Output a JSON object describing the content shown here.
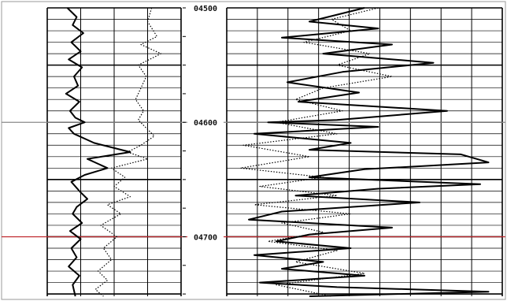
{
  "chart_data": {
    "type": "line",
    "title": "",
    "xlabel": "",
    "ylabel": "",
    "depth_axis": {
      "range": [
        4500,
        4752
      ],
      "inverted": true,
      "labels": [
        {
          "depth": 4500,
          "text": "04500"
        },
        {
          "depth": 4600,
          "text": "04600"
        },
        {
          "depth": 4700,
          "text": "04700"
        }
      ],
      "major_step": 50,
      "minor_step": 10
    },
    "tracks": [
      {
        "name": "track-1",
        "grid_columns": 4
      },
      {
        "name": "track-2",
        "grid_columns": 9
      }
    ],
    "reference_lines": [
      {
        "depth": 4600,
        "color": "#8a8a8a"
      },
      {
        "depth": 4700,
        "color": "#c0282d"
      }
    ],
    "series": [
      {
        "track": 0,
        "style": "solid",
        "color": "#000000",
        "x": [
          0.15,
          0.22,
          0.19,
          0.27,
          0.18,
          0.25,
          0.16,
          0.26,
          0.2,
          0.23,
          0.14,
          0.24,
          0.17,
          0.21,
          0.28,
          0.16,
          0.2,
          0.35,
          0.62,
          0.3,
          0.45,
          0.28,
          0.18,
          0.24,
          0.3,
          0.22,
          0.19,
          0.26,
          0.17,
          0.25,
          0.18,
          0.22,
          0.16,
          0.24,
          0.19,
          0.21
        ],
        "depth": [
          4500,
          4508,
          4515,
          4522,
          4530,
          4538,
          4545,
          4552,
          4560,
          4568,
          4575,
          4582,
          4590,
          4596,
          4600,
          4605,
          4610,
          4618,
          4626,
          4632,
          4640,
          4646,
          4652,
          4660,
          4667,
          4674,
          4680,
          4688,
          4695,
          4702,
          4710,
          4718,
          4726,
          4734,
          4742,
          4752
        ]
      },
      {
        "track": 0,
        "style": "dotted",
        "color": "#000000",
        "x": [
          0.78,
          0.75,
          0.82,
          0.7,
          0.85,
          0.68,
          0.74,
          0.7,
          0.66,
          0.72,
          0.68,
          0.74,
          0.8,
          0.7,
          0.6,
          0.75,
          0.48,
          0.58,
          0.5,
          0.62,
          0.45,
          0.55,
          0.4,
          0.52,
          0.42,
          0.48,
          0.38,
          0.45,
          0.36,
          0.42
        ],
        "depth": [
          4500,
          4512,
          4525,
          4532,
          4540,
          4550,
          4560,
          4570,
          4580,
          4590,
          4598,
          4605,
          4612,
          4620,
          4626,
          4632,
          4640,
          4648,
          4656,
          4665,
          4672,
          4680,
          4690,
          4700,
          4710,
          4720,
          4730,
          4738,
          4746,
          4752
        ]
      },
      {
        "track": 1,
        "style": "solid",
        "color": "#000000",
        "x": [
          0.5,
          0.3,
          0.55,
          0.2,
          0.6,
          0.35,
          0.75,
          0.42,
          0.22,
          0.48,
          0.26,
          0.8,
          0.4,
          0.15,
          0.55,
          0.1,
          0.45,
          0.3,
          0.85,
          0.95,
          0.5,
          0.3,
          0.92,
          0.55,
          0.25,
          0.7,
          0.2,
          0.08,
          0.6,
          0.3,
          0.18,
          0.45,
          0.1,
          0.35,
          0.2,
          0.5,
          0.12,
          0.4,
          0.95,
          0.3
        ],
        "depth": [
          4500,
          4512,
          4518,
          4526,
          4532,
          4540,
          4548,
          4556,
          4565,
          4574,
          4582,
          4590,
          4598,
          4600,
          4604,
          4610,
          4618,
          4624,
          4628,
          4635,
          4641,
          4648,
          4654,
          4658,
          4664,
          4670,
          4678,
          4685,
          4692,
          4698,
          4704,
          4710,
          4716,
          4722,
          4728,
          4734,
          4740,
          4744,
          4748,
          4752
        ]
      },
      {
        "track": 1,
        "style": "dotted",
        "color": "#000000",
        "x": [
          0.55,
          0.38,
          0.45,
          0.28,
          0.52,
          0.4,
          0.6,
          0.35,
          0.25,
          0.42,
          0.18,
          0.4,
          0.06,
          0.3,
          0.05,
          0.35,
          0.12,
          0.4,
          0.1,
          0.45,
          0.2,
          0.35,
          0.15,
          0.4,
          0.25,
          0.5,
          0.18,
          0.38
        ],
        "depth": [
          4500,
          4510,
          4520,
          4530,
          4540,
          4550,
          4560,
          4570,
          4580,
          4590,
          4600,
          4610,
          4620,
          4630,
          4640,
          4648,
          4656,
          4664,
          4672,
          4680,
          4688,
          4696,
          4704,
          4712,
          4722,
          4732,
          4742,
          4752
        ]
      }
    ]
  }
}
